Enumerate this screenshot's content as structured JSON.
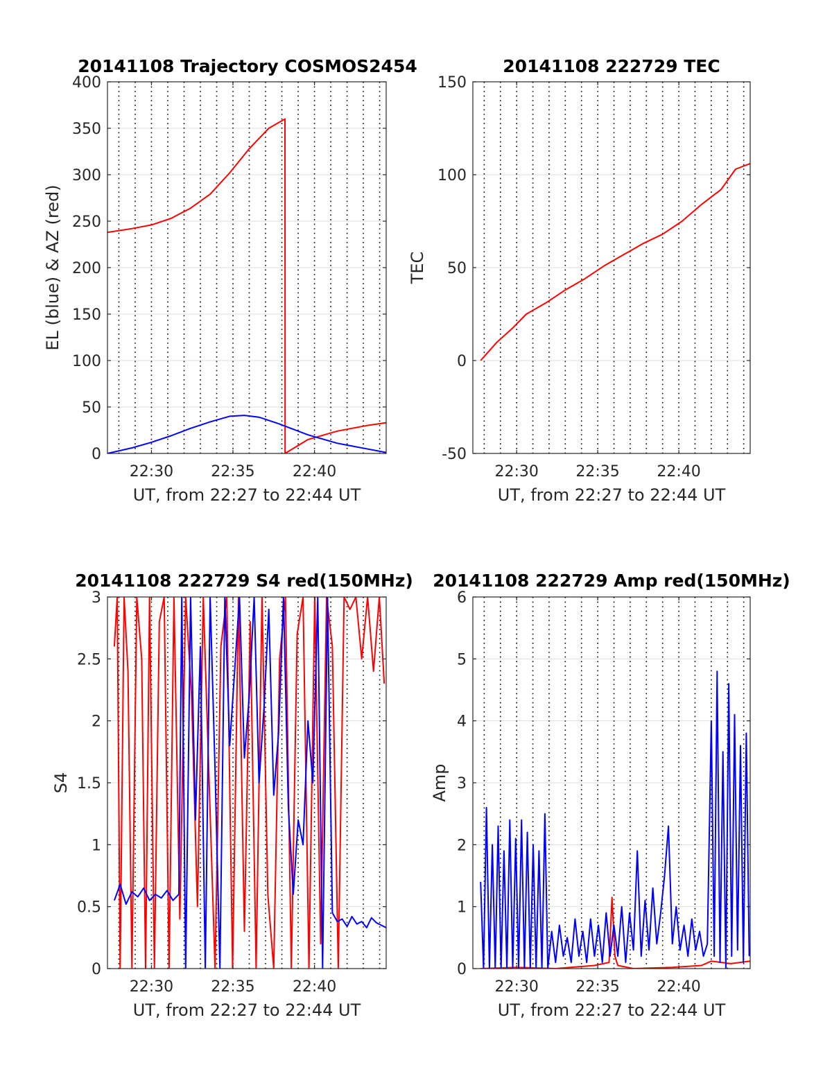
{
  "figure": {
    "background": "#ffffff"
  },
  "chart_data": [
    {
      "id": "trajectory",
      "type": "line",
      "title": "20141108 Trajectory COSMOS2454",
      "xlabel": "UT, from 22:27 to 22:44 UT",
      "ylabel": "EL (blue) & AZ (red)",
      "xlim": [
        22.455,
        22.74
      ],
      "ylim": [
        0,
        400
      ],
      "xticks": [
        {
          "value": 22.5,
          "label": "22:30"
        },
        {
          "value": 22.5833,
          "label": "22:35"
        },
        {
          "value": 22.6667,
          "label": "22:40"
        }
      ],
      "yticks": [
        {
          "value": 0,
          "label": "0"
        },
        {
          "value": 50,
          "label": "50"
        },
        {
          "value": 100,
          "label": "100"
        },
        {
          "value": 150,
          "label": "150"
        },
        {
          "value": 200,
          "label": "200"
        },
        {
          "value": 250,
          "label": "250"
        },
        {
          "value": 300,
          "label": "300"
        },
        {
          "value": 350,
          "label": "350"
        },
        {
          "value": 400,
          "label": "400"
        }
      ],
      "grid": "dotted-vertical, horizontal-major",
      "series": [
        {
          "color": "#ff0000",
          "x": [
            22.455,
            22.48,
            22.5,
            22.52,
            22.54,
            22.56,
            22.58,
            22.6,
            22.62,
            22.6365,
            22.6366,
            22.66,
            22.69,
            22.72,
            22.74
          ],
          "y": [
            238,
            242,
            246,
            253,
            264,
            279,
            302,
            328,
            350,
            360,
            0,
            15,
            24,
            30,
            33
          ]
        },
        {
          "color": "#0000ff",
          "x": [
            22.455,
            22.48,
            22.5,
            22.52,
            22.54,
            22.56,
            22.58,
            22.595,
            22.61,
            22.63,
            22.66,
            22.69,
            22.72,
            22.74
          ],
          "y": [
            0,
            6,
            12,
            19,
            27,
            34,
            40,
            41,
            39,
            32,
            20,
            11,
            5,
            1
          ]
        }
      ]
    },
    {
      "id": "tec",
      "type": "line",
      "title": "20141108 222729 TEC",
      "xlabel": "UT, from 22:27 to 22:44 UT",
      "ylabel": "TEC",
      "xlim": [
        22.455,
        22.74
      ],
      "ylim": [
        -50,
        150
      ],
      "xticks": [
        {
          "value": 22.5,
          "label": "22:30"
        },
        {
          "value": 22.5833,
          "label": "22:35"
        },
        {
          "value": 22.6667,
          "label": "22:40"
        }
      ],
      "yticks": [
        {
          "value": -50,
          "label": "-50"
        },
        {
          "value": 0,
          "label": "0"
        },
        {
          "value": 50,
          "label": "50"
        },
        {
          "value": 100,
          "label": "100"
        },
        {
          "value": 150,
          "label": "150"
        }
      ],
      "grid": "dotted-vertical, horizontal-major",
      "series": [
        {
          "color": "#ff0000",
          "x": [
            22.463,
            22.48,
            22.495,
            22.51,
            22.53,
            22.55,
            22.57,
            22.59,
            22.61,
            22.63,
            22.65,
            22.67,
            22.69,
            22.71,
            22.725,
            22.74
          ],
          "y": [
            0,
            10,
            17,
            25,
            31,
            38,
            44,
            51,
            57,
            63,
            68,
            75,
            84,
            92,
            103,
            106
          ]
        }
      ]
    },
    {
      "id": "s4",
      "type": "line",
      "title": "20141108 222729 S4 red(150MHz)",
      "xlabel": "UT, from 22:27 to 22:44 UT",
      "ylabel": "S4",
      "xlim": [
        22.455,
        22.74
      ],
      "ylim": [
        0,
        3
      ],
      "xticks": [
        {
          "value": 22.5,
          "label": "22:30"
        },
        {
          "value": 22.5833,
          "label": "22:35"
        },
        {
          "value": 22.6667,
          "label": "22:40"
        }
      ],
      "yticks": [
        {
          "value": 0,
          "label": "0"
        },
        {
          "value": 0.5,
          "label": "0.5"
        },
        {
          "value": 1,
          "label": "1"
        },
        {
          "value": 1.5,
          "label": "1.5"
        },
        {
          "value": 2,
          "label": "2"
        },
        {
          "value": 2.5,
          "label": "2.5"
        },
        {
          "value": 3,
          "label": "3"
        }
      ],
      "grid": "dotted-vertical, horizontal-major",
      "series": [
        {
          "color": "#ff0000",
          "x": [
            22.462,
            22.465,
            22.468,
            22.472,
            22.476,
            22.48,
            22.485,
            22.49,
            22.494,
            22.498,
            22.503,
            22.508,
            22.513,
            22.518,
            22.523,
            22.529,
            22.535,
            22.541,
            22.547,
            22.553,
            22.559,
            22.565,
            22.571,
            22.577,
            22.583,
            22.589,
            22.595,
            22.601,
            22.607,
            22.613,
            22.619,
            22.625,
            22.631,
            22.637,
            22.643,
            22.649,
            22.655,
            22.661,
            22.667,
            22.673,
            22.679,
            22.685,
            22.691,
            22.697,
            22.703,
            22.709,
            22.715,
            22.721,
            22.727,
            22.733,
            22.738
          ],
          "y": [
            2.6,
            3.0,
            0.0,
            3.0,
            2.4,
            0.0,
            3.0,
            2.5,
            0.0,
            3.0,
            0.0,
            2.8,
            3.0,
            0.0,
            3.0,
            0.4,
            3.0,
            2.2,
            0.5,
            3.0,
            1.5,
            0.0,
            2.6,
            3.0,
            0.0,
            3.0,
            0.3,
            2.8,
            0.0,
            3.0,
            0.6,
            0.0,
            2.5,
            3.0,
            0.0,
            2.7,
            3.0,
            0.0,
            3.0,
            0.2,
            3.0,
            2.6,
            0.0,
            3.0,
            2.9,
            3.0,
            2.5,
            3.0,
            2.4,
            3.0,
            2.3
          ]
        },
        {
          "color": "#0000ff",
          "x": [
            22.462,
            22.468,
            22.474,
            22.48,
            22.486,
            22.492,
            22.498,
            22.504,
            22.51,
            22.516,
            22.522,
            22.528,
            22.531,
            22.535,
            22.54,
            22.545,
            22.55,
            22.555,
            22.56,
            22.565,
            22.57,
            22.575,
            22.58,
            22.585,
            22.59,
            22.595,
            22.6,
            22.605,
            22.61,
            22.615,
            22.62,
            22.625,
            22.63,
            22.635,
            22.64,
            22.645,
            22.65,
            22.655,
            22.66,
            22.665,
            22.67,
            22.675,
            22.68,
            22.685,
            22.69,
            22.695,
            22.7,
            22.705,
            22.71,
            22.715,
            22.72,
            22.725,
            22.73,
            22.735,
            22.74
          ],
          "y": [
            0.55,
            0.68,
            0.52,
            0.62,
            0.58,
            0.65,
            0.55,
            0.6,
            0.57,
            0.63,
            0.55,
            0.6,
            3.0,
            0.0,
            3.0,
            1.2,
            2.6,
            0.0,
            3.0,
            1.6,
            0.0,
            3.0,
            1.8,
            2.4,
            3.0,
            1.7,
            2.2,
            3.0,
            1.5,
            2.1,
            2.9,
            1.4,
            1.9,
            3.0,
            1.3,
            0.6,
            1.2,
            1.0,
            2.0,
            1.5,
            3.0,
            0.0,
            3.0,
            0.45,
            0.38,
            0.4,
            0.34,
            0.42,
            0.36,
            0.38,
            0.33,
            0.41,
            0.37,
            0.35,
            0.33
          ]
        }
      ]
    },
    {
      "id": "amp",
      "type": "line",
      "title": "20141108 222729 Amp red(150MHz)",
      "xlabel": "UT, from 22:27 to 22:44 UT",
      "ylabel": "Amp",
      "xlim": [
        22.455,
        22.74
      ],
      "ylim": [
        0,
        6
      ],
      "xticks": [
        {
          "value": 22.5,
          "label": "22:30"
        },
        {
          "value": 22.5833,
          "label": "22:35"
        },
        {
          "value": 22.6667,
          "label": "22:40"
        }
      ],
      "yticks": [
        {
          "value": 0,
          "label": "0"
        },
        {
          "value": 1,
          "label": "1"
        },
        {
          "value": 2,
          "label": "2"
        },
        {
          "value": 3,
          "label": "3"
        },
        {
          "value": 4,
          "label": "4"
        },
        {
          "value": 5,
          "label": "5"
        },
        {
          "value": 6,
          "label": "6"
        }
      ],
      "grid": "dotted-vertical, horizontal-major",
      "series": [
        {
          "color": "#ff0000",
          "x": [
            22.463,
            22.5,
            22.54,
            22.58,
            22.595,
            22.598,
            22.601,
            22.604,
            22.62,
            22.66,
            22.69,
            22.7,
            22.72,
            22.74
          ],
          "y": [
            0.0,
            0.02,
            0.0,
            0.05,
            0.1,
            1.15,
            0.2,
            0.05,
            0.0,
            0.02,
            0.05,
            0.12,
            0.08,
            0.12
          ]
        },
        {
          "color": "#0000ff",
          "x": [
            22.463,
            22.466,
            22.469,
            22.472,
            22.475,
            22.478,
            22.481,
            22.484,
            22.487,
            22.49,
            22.493,
            22.496,
            22.499,
            22.502,
            22.505,
            22.508,
            22.511,
            22.514,
            22.517,
            22.52,
            22.523,
            22.526,
            22.529,
            22.532,
            22.536,
            22.54,
            22.544,
            22.548,
            22.552,
            22.556,
            22.56,
            22.564,
            22.568,
            22.572,
            22.576,
            22.58,
            22.584,
            22.588,
            22.592,
            22.596,
            22.6,
            22.604,
            22.608,
            22.612,
            22.616,
            22.62,
            22.624,
            22.628,
            22.632,
            22.636,
            22.64,
            22.644,
            22.648,
            22.652,
            22.656,
            22.66,
            22.664,
            22.668,
            22.672,
            22.676,
            22.68,
            22.684,
            22.688,
            22.692,
            22.696,
            22.7,
            22.703,
            22.706,
            22.709,
            22.712,
            22.715,
            22.718,
            22.721,
            22.724,
            22.727,
            22.73,
            22.733,
            22.736,
            22.739
          ],
          "y": [
            1.4,
            0.0,
            2.6,
            0.0,
            2.0,
            0.0,
            2.3,
            0.0,
            1.9,
            0.0,
            2.4,
            0.0,
            2.1,
            0.0,
            2.4,
            0.0,
            2.2,
            0.0,
            2.0,
            0.0,
            1.9,
            0.0,
            2.5,
            0.0,
            0.6,
            0.1,
            0.7,
            0.2,
            0.5,
            0.1,
            0.8,
            0.2,
            0.6,
            0.1,
            0.8,
            0.2,
            0.7,
            0.1,
            0.9,
            0.2,
            0.7,
            0.2,
            1.0,
            0.1,
            0.9,
            0.3,
            1.9,
            0.2,
            1.1,
            0.3,
            1.3,
            0.4,
            0.9,
            1.5,
            2.3,
            0.4,
            1.0,
            0.3,
            0.7,
            0.2,
            0.8,
            0.3,
            0.6,
            0.2,
            0.4,
            4.0,
            0.2,
            4.8,
            0.1,
            3.5,
            0.0,
            4.6,
            0.2,
            4.1,
            0.3,
            3.6,
            0.1,
            3.8,
            0.2
          ]
        }
      ]
    }
  ]
}
